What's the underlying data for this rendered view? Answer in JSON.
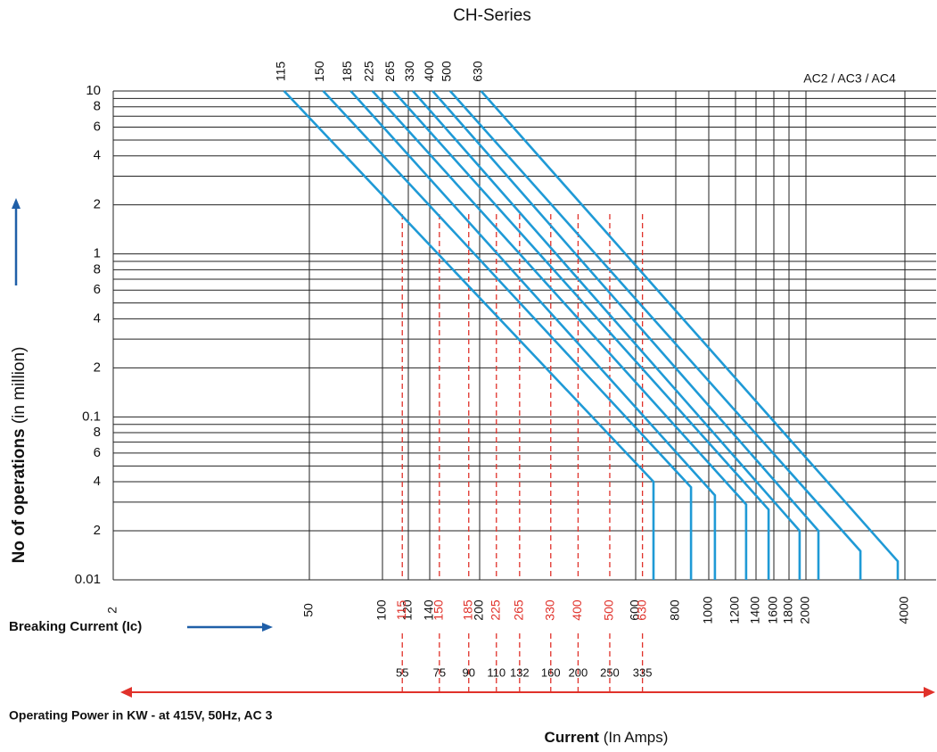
{
  "chart_data": {
    "type": "line",
    "title": "CH-Series",
    "annotation": "AC2 / AC3 / AC4",
    "y_label": "No of operations",
    "y_label_unit": "(in million)",
    "x_label": "Current",
    "x_label_unit": "(In Amps)",
    "breaking_label": "Breaking Current (Ic)",
    "power_label": "Operating Power in KW - at 415V, 50Hz, AC 3",
    "log_x": true,
    "log_y": true,
    "grid": true,
    "xlim": [
      2,
      5000
    ],
    "ylim": [
      0.01,
      10
    ],
    "xticks": [
      2,
      50,
      100,
      120,
      140,
      200,
      600,
      800,
      1000,
      1200,
      1400,
      1600,
      1800,
      2000,
      4000
    ],
    "yticks": [
      10,
      8,
      6,
      4,
      2,
      1,
      {
        "value": 0.8,
        "label": "8"
      },
      {
        "value": 0.6,
        "label": "6"
      },
      {
        "value": 0.4,
        "label": "4"
      },
      {
        "value": 0.2,
        "label": "2"
      },
      0.1,
      {
        "value": 0.08,
        "label": "8"
      },
      {
        "value": 0.06,
        "label": "6"
      },
      {
        "value": 0.04,
        "label": "4"
      },
      {
        "value": 0.02,
        "label": "2"
      },
      0.01
    ],
    "series": [
      {
        "name": "115",
        "color": "#1f9ad6",
        "x": [
          33,
          682,
          682
        ],
        "values": [
          10,
          0.04,
          0.01
        ]
      },
      {
        "name": "150",
        "color": "#1f9ad6",
        "x": [
          57,
          887,
          887
        ],
        "values": [
          10,
          0.037,
          0.01
        ]
      },
      {
        "name": "185",
        "color": "#1f9ad6",
        "x": [
          74,
          1043,
          1043
        ],
        "values": [
          10,
          0.033,
          0.01
        ]
      },
      {
        "name": "225",
        "color": "#1f9ad6",
        "x": [
          91,
          1300,
          1300
        ],
        "values": [
          10,
          0.029,
          0.01
        ]
      },
      {
        "name": "265",
        "color": "#1f9ad6",
        "x": [
          108,
          1538,
          1538
        ],
        "values": [
          10,
          0.027,
          0.01
        ]
      },
      {
        "name": "330",
        "color": "#1f9ad6",
        "x": [
          124,
          1923,
          1923
        ],
        "values": [
          10,
          0.02,
          0.01
        ]
      },
      {
        "name": "400",
        "color": "#1f9ad6",
        "x": [
          143,
          2183,
          2183
        ],
        "values": [
          10,
          0.02,
          0.01
        ]
      },
      {
        "name": "500",
        "color": "#1f9ad6",
        "x": [
          162,
          2929,
          2929
        ],
        "values": [
          10,
          0.015,
          0.01
        ]
      },
      {
        "name": "630",
        "color": "#1f9ad6",
        "x": [
          202,
          3805,
          3805
        ],
        "values": [
          10,
          0.013,
          0.01
        ]
      }
    ],
    "rated_color": "#e0312a",
    "rated_currents": [
      115,
      150,
      185,
      225,
      265,
      330,
      400,
      500,
      630
    ],
    "rated_kw": [
      55,
      75,
      90,
      110,
      132,
      160,
      200,
      250,
      335
    ]
  }
}
